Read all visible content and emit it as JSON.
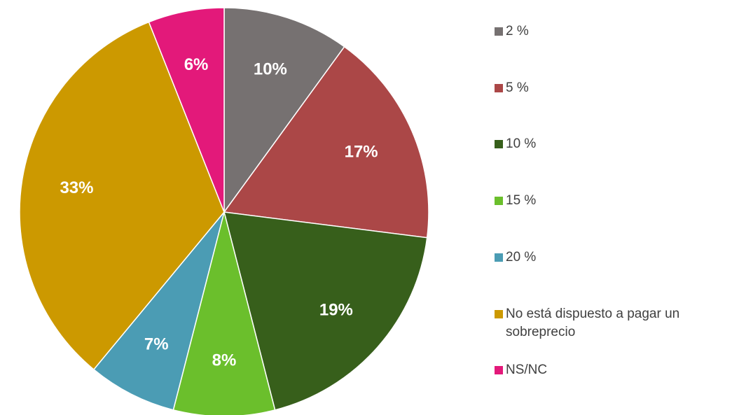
{
  "chart_data": {
    "type": "pie",
    "categories": [
      "2 %",
      "5 %",
      "10 %",
      "15 %",
      "20 %",
      "No está dispuesto a pagar un sobreprecio",
      "NS/NC"
    ],
    "values": [
      10,
      17,
      19,
      8,
      7,
      33,
      6
    ],
    "value_labels": [
      "10%",
      "17%",
      "19%",
      "8%",
      "7%",
      "33%",
      "6%"
    ],
    "colors": [
      "#767171",
      "#ab4747",
      "#375f1b",
      "#6bbf2c",
      "#4b9cb4",
      "#cc9900",
      "#e3197a"
    ],
    "legend": "right"
  }
}
